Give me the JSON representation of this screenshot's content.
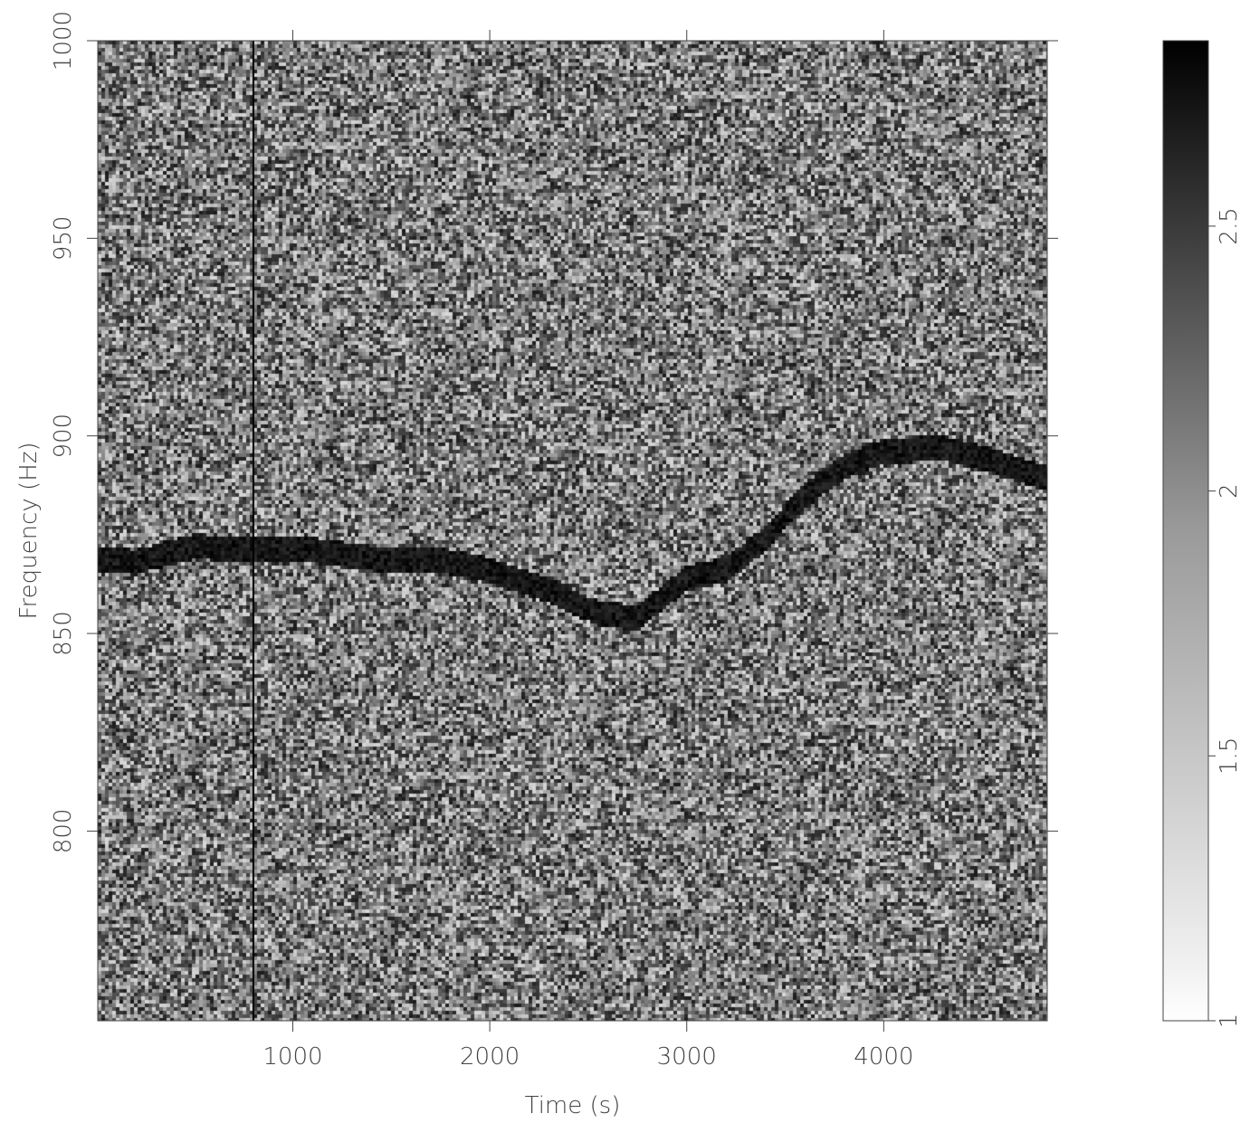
{
  "chart_data": {
    "type": "heatmap",
    "title": "",
    "xlabel": "Time (s)",
    "ylabel": "Frequency (Hz)",
    "xlim": [
      10,
      4830
    ],
    "ylim": [
      752,
      1000
    ],
    "x_ticks": [
      {
        "value": 1000,
        "label": "1000"
      },
      {
        "value": 2000,
        "label": "2000"
      },
      {
        "value": 3000,
        "label": "3000"
      },
      {
        "value": 4000,
        "label": "4000"
      }
    ],
    "y_ticks": [
      {
        "value": 800,
        "label": "800"
      },
      {
        "value": 850,
        "label": "850"
      },
      {
        "value": 900,
        "label": "900"
      },
      {
        "value": 950,
        "label": "950"
      },
      {
        "value": 1000,
        "label": "1000"
      }
    ],
    "colorbar": {
      "range": [
        1,
        2.85
      ],
      "colormap": "white-to-black (grayscale)",
      "ticks": [
        {
          "value": 1,
          "label": "1"
        },
        {
          "value": 1.5,
          "label": "1.5"
        },
        {
          "value": 2,
          "label": "2"
        },
        {
          "value": 2.5,
          "label": "2.5"
        }
      ]
    },
    "signal_track": {
      "time": [
        10,
        200,
        500,
        800,
        1100,
        1400,
        1700,
        2000,
        2300,
        2550,
        2750,
        2900,
        3000,
        3200,
        3400,
        3600,
        3800,
        4000,
        4300,
        4600,
        4830
      ],
      "frequency": [
        869,
        868,
        872,
        871,
        871,
        869,
        869,
        866,
        861,
        855,
        854,
        860,
        864,
        866,
        874,
        885,
        892,
        896,
        897,
        893,
        889
      ]
    },
    "vertical_line_time": 800,
    "grid": false,
    "legend": "none"
  },
  "colors": {
    "noise_light": "#ffffff",
    "noise_dark": "#000000",
    "axis": "#444444",
    "track": "#000000"
  }
}
